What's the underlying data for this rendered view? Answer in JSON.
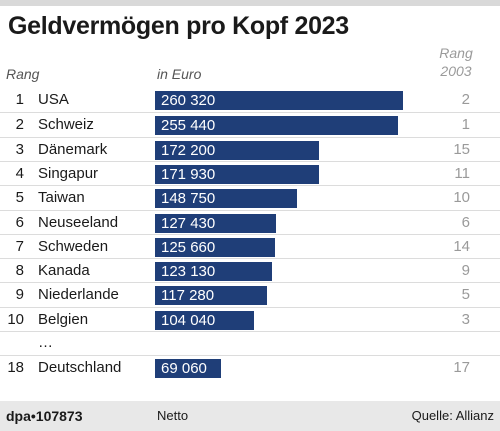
{
  "title": "Geldvermögen pro Kopf 2023",
  "headers": {
    "rank": "Rang",
    "unit": "in Euro",
    "rank2003_line1": "Rang",
    "rank2003_line2": "2003"
  },
  "chart_data": {
    "type": "bar",
    "title": "Geldvermögen pro Kopf 2023",
    "unit": "in Euro",
    "xlim": [
      0,
      260320
    ],
    "rows": [
      {
        "rank": "1",
        "country": "USA",
        "value": 260320,
        "label": "260 320",
        "rank2003": "2"
      },
      {
        "rank": "2",
        "country": "Schweiz",
        "value": 255440,
        "label": "255 440",
        "rank2003": "1"
      },
      {
        "rank": "3",
        "country": "Dänemark",
        "value": 172200,
        "label": "172 200",
        "rank2003": "15"
      },
      {
        "rank": "4",
        "country": "Singapur",
        "value": 171930,
        "label": "171 930",
        "rank2003": "11"
      },
      {
        "rank": "5",
        "country": "Taiwan",
        "value": 148750,
        "label": "148 750",
        "rank2003": "10"
      },
      {
        "rank": "6",
        "country": "Neuseeland",
        "value": 127430,
        "label": "127 430",
        "rank2003": "6"
      },
      {
        "rank": "7",
        "country": "Schweden",
        "value": 125660,
        "label": "125 660",
        "rank2003": "14"
      },
      {
        "rank": "8",
        "country": "Kanada",
        "value": 123130,
        "label": "123 130",
        "rank2003": "9"
      },
      {
        "rank": "9",
        "country": "Niederlande",
        "value": 117280,
        "label": "117 280",
        "rank2003": "5"
      },
      {
        "rank": "10",
        "country": "Belgien",
        "value": 104040,
        "label": "104 040",
        "rank2003": "3"
      },
      {
        "ellipsis": "…"
      },
      {
        "rank": "18",
        "country": "Deutschland",
        "value": 69060,
        "label": "69 060",
        "rank2003": "17"
      }
    ]
  },
  "footer": {
    "source_left": "dpa•107873",
    "note": "Netto",
    "source_right": "Quelle: Allianz"
  },
  "colors": {
    "bar": "#1f3e78"
  }
}
